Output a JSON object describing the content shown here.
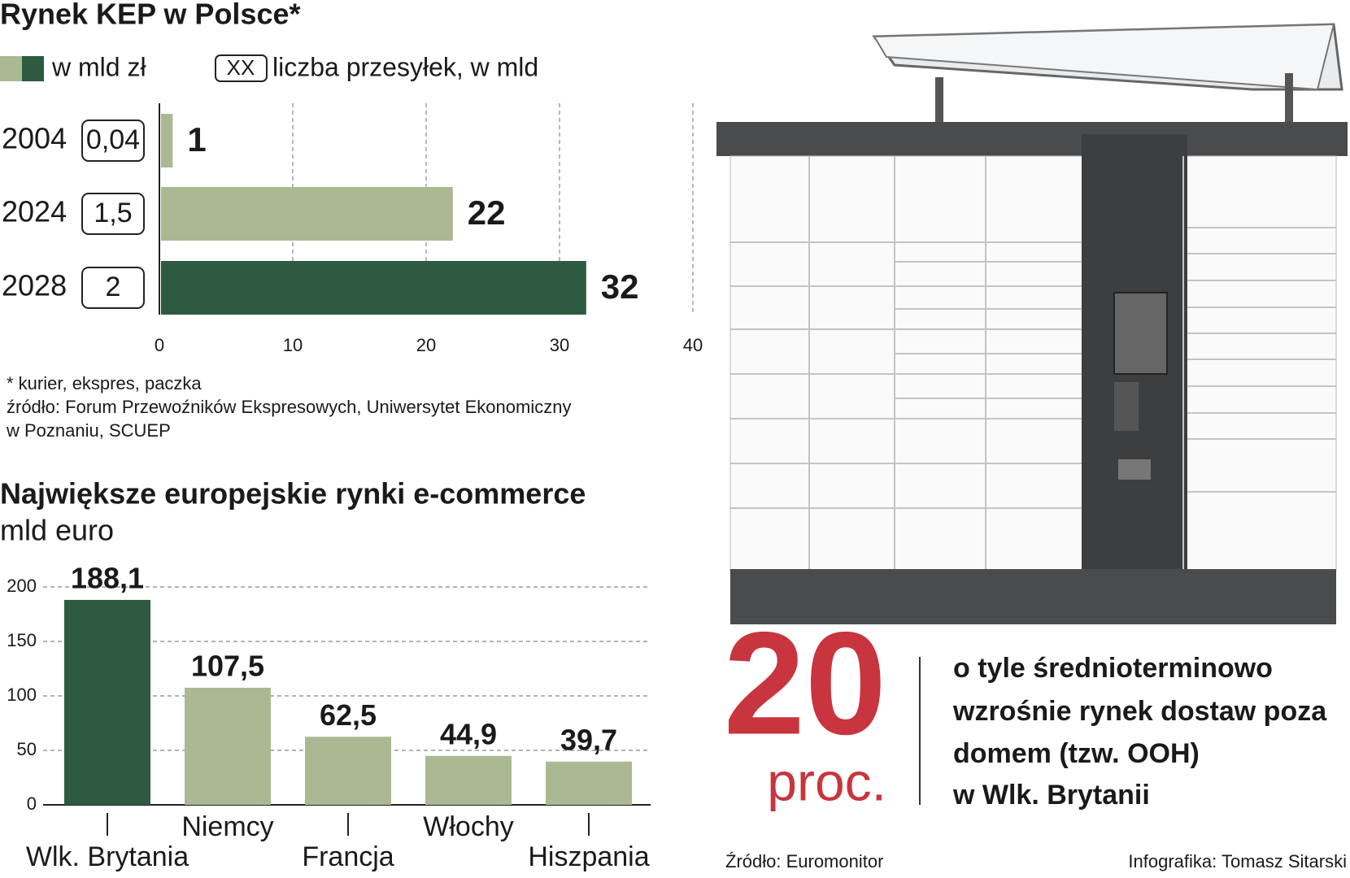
{
  "chart_data": [
    {
      "type": "hbar",
      "title": "Rynek KEP w Polsce*",
      "legend_label": "w mld zł",
      "legend_symbol": "XX",
      "count_legend_label": "liczba przesyłek, w mld",
      "categories": [
        "2004",
        "2024",
        "2028"
      ],
      "values": [
        1,
        22,
        32
      ],
      "colors": [
        "#abb993",
        "#abb993",
        "#2d5a40"
      ],
      "counts": [
        0.04,
        1.5,
        2
      ],
      "count_labels": [
        "0,04",
        "1,5",
        "2"
      ],
      "xlim": [
        0,
        40
      ],
      "xticks": [
        0,
        10,
        20,
        30,
        40
      ],
      "grid": true,
      "notes": [
        "* kurier, ekspres, paczka",
        "źródło: Forum Przewoźników Ekspresowych, Uniwersytet Ekonomiczny",
        "w Poznaniu, SCUEP"
      ]
    },
    {
      "type": "bar",
      "title": "Największe europejskie rynki e-commerce",
      "subtitle": "mld euro",
      "categories": [
        "Wlk. Brytania",
        "Niemcy",
        "Francja",
        "Włochy",
        "Hiszpania"
      ],
      "values": [
        188.1,
        107.5,
        62.5,
        44.9,
        39.7
      ],
      "value_labels": [
        "188,1",
        "107,5",
        "62,5",
        "44,9",
        "39,7"
      ],
      "colors": [
        "#2d5a40",
        "#abb993",
        "#abb993",
        "#abb993",
        "#abb993"
      ],
      "ylim": [
        0,
        200
      ],
      "yticks": [
        0,
        50,
        100,
        150,
        200
      ],
      "grid": true
    }
  ],
  "callout": {
    "number": "20",
    "unit": "proc.",
    "lines": [
      "o tyle średnioterminowo",
      "wzrośnie rynek dostaw poza",
      "domem (tzw. OOH)",
      "w Wlk. Brytanii"
    ]
  },
  "source": "Źródło: Euromonitor",
  "credit": "Infografika: Tomasz Sitarski"
}
